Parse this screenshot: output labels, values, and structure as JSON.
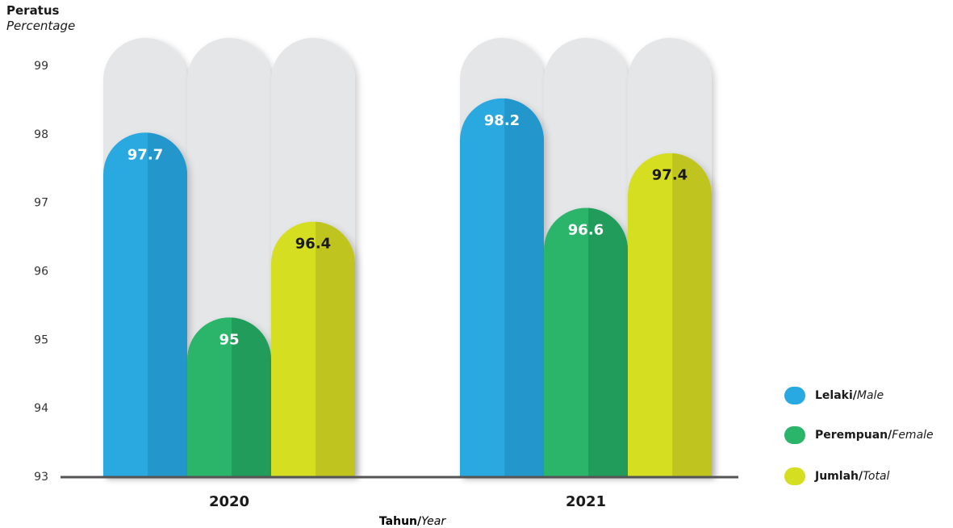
{
  "chart_data": {
    "type": "bar",
    "ylabel": "Peratus",
    "ylabel_en": "Percentage",
    "xlabel": "Tahun/",
    "xlabel_en": "Year",
    "ylim": [
      93,
      99
    ],
    "yticks": [
      "93",
      "94",
      "95",
      "96",
      "97",
      "98",
      "99"
    ],
    "categories": [
      "2020",
      "2021"
    ],
    "series": [
      {
        "name": "Lelaki/",
        "name_en": "Male",
        "values": [
          97.7,
          98.2
        ],
        "labels": [
          "97.7",
          "98.2"
        ],
        "color": "#29a9e1",
        "shade": "#2397cc",
        "label_color": "#ffffff"
      },
      {
        "name": "Perempuan/",
        "name_en": "Female",
        "values": [
          95,
          96.6
        ],
        "labels": [
          "95",
          "96.6"
        ],
        "color": "#2bb56a",
        "shade": "#229c5a",
        "label_color": "#ffffff"
      },
      {
        "name": "Jumlah/",
        "name_en": "Total",
        "values": [
          96.4,
          97.4
        ],
        "labels": [
          "96.4",
          "97.4"
        ],
        "color": "#d6de22",
        "shade": "#bfc51e",
        "label_color": "#1a1a1a"
      }
    ],
    "background_color": "#e5e6e8",
    "axis_color": "#555555",
    "legend_position": "right"
  }
}
